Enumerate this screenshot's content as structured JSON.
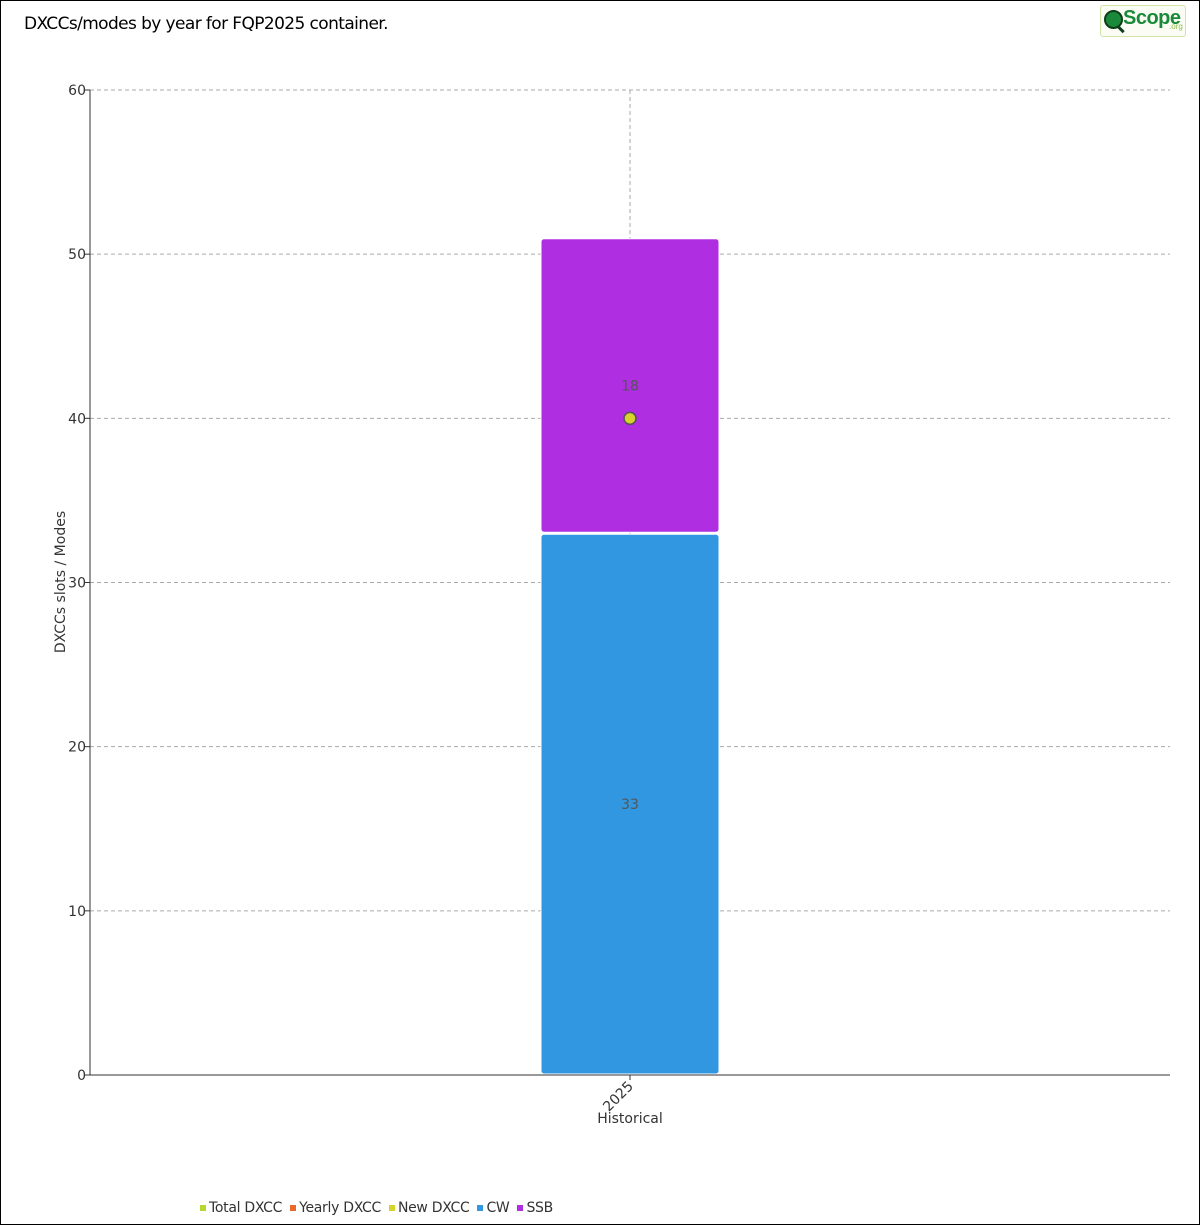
{
  "page": {
    "title": "DXCCs/modes by year for FQP2025 container.",
    "logo": {
      "text": "Scope",
      "suffix": ".org"
    }
  },
  "chart_data": {
    "type": "bar",
    "stacked": true,
    "categories": [
      "2025"
    ],
    "xlabel": "Historical",
    "ylabel": "DXCCs slots / Modes",
    "ylim": [
      0,
      60
    ],
    "yticks": [
      0,
      10,
      20,
      30,
      40,
      50,
      60
    ],
    "grid": true,
    "legend_position": "bottom-left",
    "series": [
      {
        "name": "CW",
        "type": "bar",
        "color": "#3097e0",
        "values": [
          33
        ]
      },
      {
        "name": "SSB",
        "type": "bar",
        "color": "#b02ee2",
        "values": [
          18
        ]
      },
      {
        "name": "New DXCC",
        "type": "point",
        "color": "#d8d32a",
        "values": [
          40
        ]
      }
    ],
    "legend": [
      {
        "name": "Total DXCC",
        "color": "#b5d82a"
      },
      {
        "name": "Yearly DXCC",
        "color": "#e8692d"
      },
      {
        "name": "New DXCC",
        "color": "#d8d32a"
      },
      {
        "name": "CW",
        "color": "#3097e0"
      },
      {
        "name": "SSB",
        "color": "#b02ee2"
      }
    ]
  }
}
